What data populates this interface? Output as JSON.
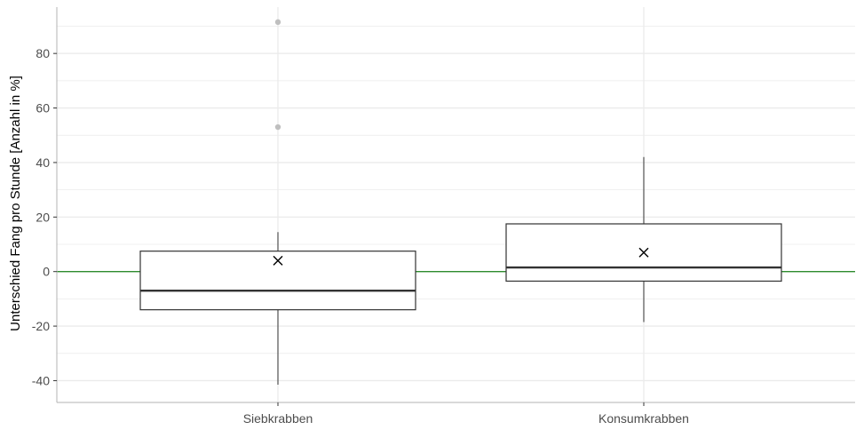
{
  "chart_data": {
    "type": "boxplot",
    "title": "",
    "xlabel": "",
    "ylabel": "Unterschied Fang pro Stunde [Anzahl in %]",
    "ylim": [
      -48,
      97
    ],
    "y_ticks": [
      -40,
      -20,
      0,
      20,
      40,
      60,
      80
    ],
    "y_minor_ticks": [
      -30,
      -10,
      10,
      30,
      50,
      70,
      90
    ],
    "grid": true,
    "legend": "none",
    "reference_line": {
      "y": 0,
      "color": "#2e8b2e"
    },
    "categories": [
      "Siebkrabben",
      "Konsumkrabben"
    ],
    "boxes": [
      {
        "category": "Siebkrabben",
        "whisker_low": -41.5,
        "q1": -14,
        "median": -7,
        "q3": 7.5,
        "whisker_high": 14.5,
        "mean": 4,
        "outliers": [
          53,
          91.5
        ]
      },
      {
        "category": "Konsumkrabben",
        "whisker_low": -18.5,
        "q1": -3.5,
        "median": 1.5,
        "q3": 17.5,
        "whisker_high": 42,
        "mean": 7,
        "outliers": []
      }
    ],
    "colors": {
      "box_stroke": "#333333",
      "outlier": "#bfbfbf",
      "grid": "#ebebeb",
      "axis": "#b3b3b3"
    }
  }
}
